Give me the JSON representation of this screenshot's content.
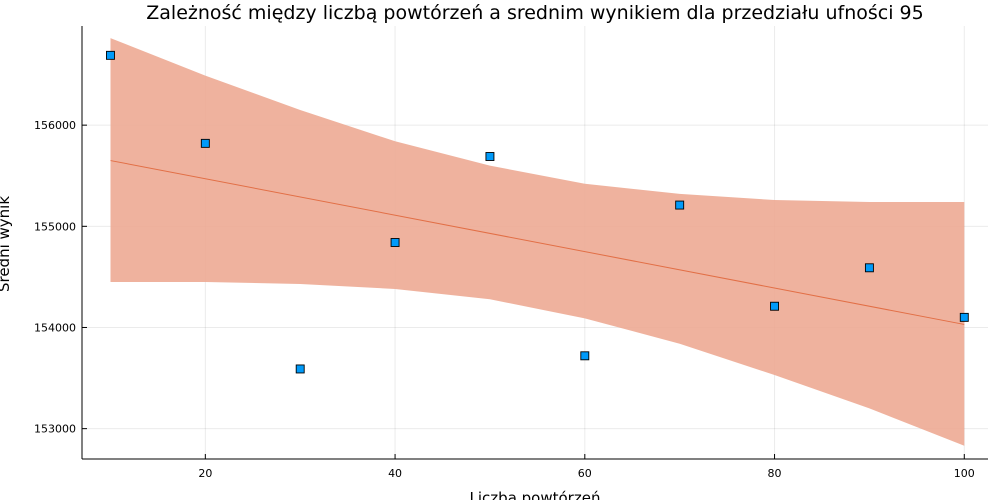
{
  "chart_data": {
    "type": "scatter",
    "title": "Zależność między liczbą powtórzeń a srednim wynikiem dla przedziału ufności 95",
    "xlabel": "Liczba powtórzeń",
    "ylabel": "Średni wynik",
    "xlim": [
      7,
      102.5
    ],
    "ylim": [
      152700,
      156980
    ],
    "x_ticks": [
      20,
      40,
      60,
      80,
      100
    ],
    "y_ticks": [
      153000,
      154000,
      155000,
      156000
    ],
    "grid": true,
    "legend": "none",
    "colors": {
      "points": "#009AF9",
      "band": "#EDAA93",
      "trend": "#E26F46",
      "axis": "#000000"
    },
    "points": {
      "x": [
        10,
        20,
        30,
        40,
        50,
        60,
        70,
        80,
        90,
        100
      ],
      "y": [
        156690,
        155820,
        153590,
        154840,
        155690,
        153720,
        155210,
        154210,
        154590,
        154100
      ]
    },
    "trend_line": {
      "x": [
        10,
        100
      ],
      "y": [
        155650,
        154030
      ]
    },
    "confidence_band": {
      "x": [
        10,
        20,
        30,
        40,
        50,
        60,
        70,
        80,
        90,
        100
      ],
      "upper": [
        156860,
        156490,
        156150,
        155840,
        155600,
        155420,
        155320,
        155260,
        155240,
        155240
      ],
      "lower": [
        154450,
        154450,
        154430,
        154380,
        154280,
        154090,
        153840,
        153530,
        153200,
        152830
      ]
    }
  }
}
